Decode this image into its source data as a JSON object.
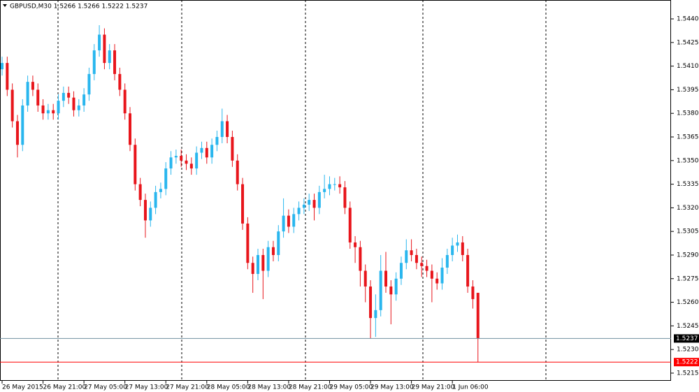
{
  "chart_data": {
    "type": "candlestick",
    "title": "GBPUSD,M30  1.5266 1.5266 1.5222 1.5237",
    "up_color": "#29b6ee",
    "down_color": "#e8151b",
    "ylim": [
      1.52101,
      1.5452
    ],
    "yticks": [
      {
        "value": 1.5215,
        "label": "1.5215"
      },
      {
        "value": 1.523,
        "label": "1.5230"
      },
      {
        "value": 1.5245,
        "label": "1.5245"
      },
      {
        "value": 1.526,
        "label": "1.5260"
      },
      {
        "value": 1.5275,
        "label": "1.5275"
      },
      {
        "value": 1.529,
        "label": "1.5290"
      },
      {
        "value": 1.5305,
        "label": "1.5305"
      },
      {
        "value": 1.532,
        "label": "1.5320"
      },
      {
        "value": 1.5335,
        "label": "1.5335"
      },
      {
        "value": 1.535,
        "label": "1.5350"
      },
      {
        "value": 1.5365,
        "label": "1.5365"
      },
      {
        "value": 1.538,
        "label": "1.5380"
      },
      {
        "value": 1.5395,
        "label": "1.5395"
      },
      {
        "value": 1.541,
        "label": "1.5410"
      },
      {
        "value": 1.5425,
        "label": "1.5425"
      },
      {
        "value": 1.544,
        "label": "1.5440"
      }
    ],
    "price_lines": [
      {
        "value": 1.5237,
        "label": "1.5237",
        "color": "#6f8fa0",
        "box": "#000"
      },
      {
        "value": 1.5222,
        "label": "1.5222",
        "color": "#ff0000",
        "box": "#ff0000"
      }
    ],
    "categories": [
      "26 May 2015",
      null,
      null,
      null,
      null,
      null,
      null,
      null,
      "26 May 21:00",
      null,
      null,
      null,
      null,
      null,
      null,
      null,
      "27 May 05:00",
      null,
      null,
      null,
      null,
      null,
      null,
      null,
      "27 May 13:00",
      null,
      null,
      null,
      null,
      null,
      null,
      null,
      "27 May 21:00",
      null,
      null,
      null,
      null,
      null,
      null,
      null,
      "28 May 05:00",
      null,
      null,
      null,
      null,
      null,
      null,
      null,
      "28 May 13:00",
      null,
      null,
      null,
      null,
      null,
      null,
      null,
      "28 May 21:00",
      null,
      null,
      null,
      null,
      null,
      null,
      null,
      "29 May 05:00",
      null,
      null,
      null,
      null,
      null,
      null,
      null,
      "29 May 13:00",
      null,
      null,
      null,
      null,
      null,
      null,
      null,
      "29 May 21:00",
      null,
      null,
      null,
      null,
      null,
      null,
      null,
      "1 Jun 06:00",
      null,
      null,
      null,
      null,
      null
    ],
    "candles": [
      [
        1.5408,
        1.5416,
        1.5404,
        1.5412
      ],
      [
        1.5412,
        1.5416,
        1.5391,
        1.5395
      ],
      [
        1.5395,
        1.5399,
        1.5371,
        1.5375
      ],
      [
        1.5375,
        1.5379,
        1.5352,
        1.536
      ],
      [
        1.536,
        1.5389,
        1.5356,
        1.5385
      ],
      [
        1.5385,
        1.5404,
        1.5381,
        1.54
      ],
      [
        1.54,
        1.5404,
        1.5391,
        1.5395
      ],
      [
        1.5395,
        1.5399,
        1.5381,
        1.5385
      ],
      [
        1.5385,
        1.5389,
        1.5376,
        1.538
      ],
      [
        1.538,
        1.5386,
        1.5376,
        1.5382
      ],
      [
        1.5382,
        1.5386,
        1.5376,
        1.538
      ],
      [
        1.538,
        1.5392,
        1.5376,
        1.5388
      ],
      [
        1.5388,
        1.5397,
        1.5384,
        1.5393
      ],
      [
        1.5393,
        1.5397,
        1.5386,
        1.539
      ],
      [
        1.539,
        1.5394,
        1.5378,
        1.5382
      ],
      [
        1.5382,
        1.5389,
        1.5378,
        1.5385
      ],
      [
        1.5385,
        1.5396,
        1.5381,
        1.5392
      ],
      [
        1.5392,
        1.5409,
        1.5388,
        1.5405
      ],
      [
        1.5405,
        1.5424,
        1.5401,
        1.542
      ],
      [
        1.542,
        1.5436,
        1.5416,
        1.543
      ],
      [
        1.543,
        1.5434,
        1.5408,
        1.5412
      ],
      [
        1.5412,
        1.5424,
        1.5408,
        1.542
      ],
      [
        1.542,
        1.5424,
        1.5401,
        1.5405
      ],
      [
        1.5405,
        1.5409,
        1.5391,
        1.5395
      ],
      [
        1.5395,
        1.5399,
        1.5376,
        1.538
      ],
      [
        1.538,
        1.5384,
        1.5356,
        1.536
      ],
      [
        1.536,
        1.5364,
        1.5331,
        1.5335
      ],
      [
        1.5335,
        1.5339,
        1.5321,
        1.5325
      ],
      [
        1.5325,
        1.5329,
        1.5301,
        1.5312
      ],
      [
        1.5312,
        1.5324,
        1.5308,
        1.532
      ],
      [
        1.532,
        1.5334,
        1.5316,
        1.533
      ],
      [
        1.533,
        1.5336,
        1.5326,
        1.5332
      ],
      [
        1.5332,
        1.5349,
        1.5328,
        1.5345
      ],
      [
        1.5345,
        1.5356,
        1.5341,
        1.5352
      ],
      [
        1.5352,
        1.5357,
        1.5348,
        1.5353
      ],
      [
        1.5353,
        1.5357,
        1.5346,
        1.535
      ],
      [
        1.535,
        1.5354,
        1.5344,
        1.5348
      ],
      [
        1.5348,
        1.5352,
        1.5341,
        1.5345
      ],
      [
        1.5345,
        1.5359,
        1.5341,
        1.5355
      ],
      [
        1.5355,
        1.5362,
        1.5351,
        1.5358
      ],
      [
        1.5358,
        1.5362,
        1.5348,
        1.5352
      ],
      [
        1.5352,
        1.5364,
        1.5348,
        1.536
      ],
      [
        1.536,
        1.5369,
        1.5356,
        1.5365
      ],
      [
        1.5365,
        1.5383,
        1.5361,
        1.5375
      ],
      [
        1.5375,
        1.5379,
        1.5361,
        1.5365
      ],
      [
        1.5365,
        1.5369,
        1.5346,
        1.535
      ],
      [
        1.535,
        1.5354,
        1.5331,
        1.5335
      ],
      [
        1.5335,
        1.5339,
        1.5306,
        1.531
      ],
      [
        1.531,
        1.5314,
        1.5281,
        1.5285
      ],
      [
        1.5285,
        1.5289,
        1.5266,
        1.5278
      ],
      [
        1.5278,
        1.5294,
        1.5274,
        1.529
      ],
      [
        1.529,
        1.5294,
        1.5262,
        1.528
      ],
      [
        1.528,
        1.5299,
        1.5276,
        1.5295
      ],
      [
        1.5295,
        1.5299,
        1.5286,
        1.529
      ],
      [
        1.529,
        1.5309,
        1.5286,
        1.5305
      ],
      [
        1.5305,
        1.5326,
        1.5301,
        1.5315
      ],
      [
        1.5315,
        1.5319,
        1.5304,
        1.5308
      ],
      [
        1.5308,
        1.532,
        1.5304,
        1.5316
      ],
      [
        1.5316,
        1.5324,
        1.5312,
        1.532
      ],
      [
        1.532,
        1.5326,
        1.5316,
        1.5322
      ],
      [
        1.5322,
        1.5329,
        1.5318,
        1.5325
      ],
      [
        1.5325,
        1.5329,
        1.5312,
        1.532
      ],
      [
        1.532,
        1.5334,
        1.5316,
        1.533
      ],
      [
        1.533,
        1.5341,
        1.5326,
        1.5332
      ],
      [
        1.5332,
        1.534,
        1.5328,
        1.5335
      ],
      [
        1.5335,
        1.5339,
        1.5331,
        1.5335
      ],
      [
        1.5335,
        1.534,
        1.5329,
        1.5333
      ],
      [
        1.5333,
        1.5337,
        1.5316,
        1.532
      ],
      [
        1.532,
        1.5324,
        1.5294,
        1.5298
      ],
      [
        1.5298,
        1.5302,
        1.5285,
        1.5295
      ],
      [
        1.5295,
        1.5299,
        1.527,
        1.528
      ],
      [
        1.528,
        1.5284,
        1.526,
        1.527
      ],
      [
        1.527,
        1.5274,
        1.5237,
        1.525
      ],
      [
        1.525,
        1.5265,
        1.5238,
        1.5255
      ],
      [
        1.5255,
        1.529,
        1.5251,
        1.528
      ],
      [
        1.528,
        1.5292,
        1.5266,
        1.527
      ],
      [
        1.527,
        1.5274,
        1.5246,
        1.5265
      ],
      [
        1.5265,
        1.5279,
        1.5261,
        1.5275
      ],
      [
        1.5275,
        1.5289,
        1.5271,
        1.5285
      ],
      [
        1.5285,
        1.53,
        1.5281,
        1.5293
      ],
      [
        1.5293,
        1.53,
        1.5286,
        1.529
      ],
      [
        1.529,
        1.5294,
        1.5281,
        1.5285
      ],
      [
        1.5285,
        1.5289,
        1.5276,
        1.5283
      ],
      [
        1.5283,
        1.5287,
        1.5276,
        1.528
      ],
      [
        1.528,
        1.5284,
        1.526,
        1.5275
      ],
      [
        1.5275,
        1.5279,
        1.5268,
        1.5272
      ],
      [
        1.5272,
        1.5288,
        1.5268,
        1.5282
      ],
      [
        1.5282,
        1.5294,
        1.5278,
        1.529
      ],
      [
        1.529,
        1.5301,
        1.5286,
        1.5296
      ],
      [
        1.5296,
        1.5303,
        1.5292,
        1.5298
      ],
      [
        1.5298,
        1.5302,
        1.5286,
        1.529
      ],
      [
        1.529,
        1.5294,
        1.5266,
        1.527
      ],
      [
        1.527,
        1.5274,
        1.5256,
        1.5262
      ],
      [
        1.5266,
        1.5266,
        1.5222,
        1.5237
      ]
    ]
  }
}
